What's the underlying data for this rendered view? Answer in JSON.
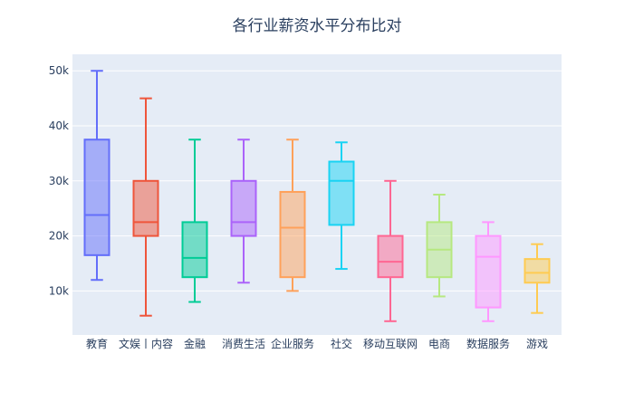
{
  "chart_data": {
    "type": "box",
    "title": "各行业薪资水平分布比对",
    "xlabel": "",
    "ylabel": "",
    "ylim": [
      2000,
      53000
    ],
    "yticks": [
      10000,
      20000,
      30000,
      40000,
      50000
    ],
    "ytick_labels": [
      "10k",
      "20k",
      "30k",
      "40k",
      "50k"
    ],
    "grid": true,
    "legend": "none",
    "plot_bgcolor": "#e5ecf6",
    "series": [
      {
        "name": "教育",
        "color": "#636efa",
        "min": 12000,
        "q1": 16500,
        "median": 23800,
        "q3": 37500,
        "max": 50000
      },
      {
        "name": "文娱丨内容",
        "color": "#ef553b",
        "min": 5500,
        "q1": 20000,
        "median": 22500,
        "q3": 30000,
        "max": 45000
      },
      {
        "name": "金融",
        "color": "#00cc96",
        "min": 8000,
        "q1": 12500,
        "median": 16000,
        "q3": 22500,
        "max": 37500
      },
      {
        "name": "消费生活",
        "color": "#ab63fa",
        "min": 11500,
        "q1": 20000,
        "median": 22500,
        "q3": 30000,
        "max": 37500
      },
      {
        "name": "企业服务",
        "color": "#ffa15a",
        "min": 10000,
        "q1": 12500,
        "median": 21500,
        "q3": 28000,
        "max": 37500
      },
      {
        "name": "社交",
        "color": "#19d3f3",
        "min": 14000,
        "q1": 22000,
        "median": 30000,
        "q3": 33500,
        "max": 37000
      },
      {
        "name": "移动互联网",
        "color": "#ff6692",
        "min": 4500,
        "q1": 12500,
        "median": 15300,
        "q3": 20000,
        "max": 30000
      },
      {
        "name": "电商",
        "color": "#b6e880",
        "min": 9000,
        "q1": 12500,
        "median": 17500,
        "q3": 22500,
        "max": 27500
      },
      {
        "name": "数据服务",
        "color": "#ff97ff",
        "min": 4500,
        "q1": 7000,
        "median": 16200,
        "q3": 20000,
        "max": 22500
      },
      {
        "name": "游戏",
        "color": "#fecb52",
        "min": 6000,
        "q1": 11500,
        "median": 13300,
        "q3": 15800,
        "max": 18500
      }
    ]
  }
}
